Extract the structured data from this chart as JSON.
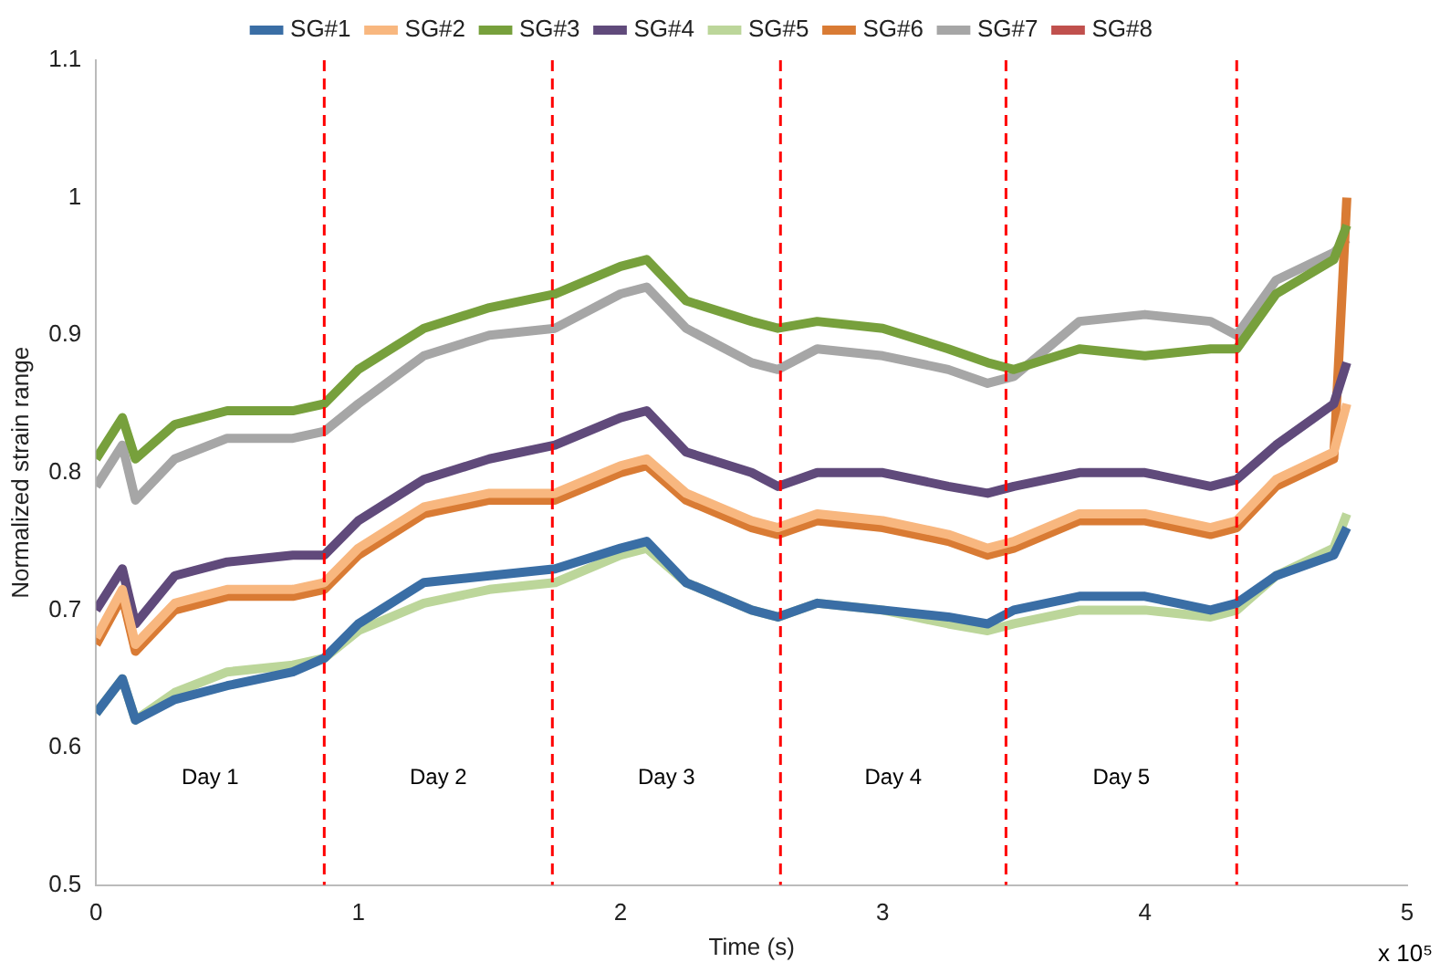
{
  "chart_data": {
    "type": "line",
    "xlabel": "Time (s)",
    "ylabel": "Normalized strain range",
    "x": [
      0,
      0.1,
      0.15,
      0.3,
      0.5,
      0.75,
      0.87,
      1.0,
      1.25,
      1.5,
      1.75,
      2.0,
      2.1,
      2.25,
      2.5,
      2.6,
      2.75,
      3.0,
      3.25,
      3.4,
      3.5,
      3.75,
      4.0,
      4.25,
      4.35,
      4.5,
      4.72,
      4.77
    ],
    "series": [
      {
        "name": "SG#1",
        "color": "#3a6ea5",
        "values": [
          0.625,
          0.65,
          0.62,
          0.635,
          0.645,
          0.655,
          0.665,
          0.69,
          0.72,
          0.725,
          0.73,
          0.745,
          0.75,
          0.72,
          0.7,
          0.695,
          0.705,
          0.7,
          0.695,
          0.69,
          0.7,
          0.71,
          0.71,
          0.7,
          0.705,
          0.725,
          0.74,
          0.76
        ]
      },
      {
        "name": "SG#2",
        "color": "#f8b77f",
        "values": [
          0.68,
          0.715,
          0.675,
          0.705,
          0.715,
          0.715,
          0.72,
          0.745,
          0.775,
          0.785,
          0.785,
          0.805,
          0.81,
          0.785,
          0.765,
          0.76,
          0.77,
          0.765,
          0.755,
          0.745,
          0.75,
          0.77,
          0.77,
          0.76,
          0.765,
          0.795,
          0.815,
          0.85
        ]
      },
      {
        "name": "SG#3",
        "color": "#77a03c",
        "values": [
          0.81,
          0.84,
          0.81,
          0.835,
          0.845,
          0.845,
          0.85,
          0.875,
          0.905,
          0.92,
          0.93,
          0.95,
          0.955,
          0.925,
          0.91,
          0.905,
          0.91,
          0.905,
          0.89,
          0.88,
          0.875,
          0.89,
          0.885,
          0.89,
          0.89,
          0.93,
          0.955,
          0.98
        ]
      },
      {
        "name": "SG#4",
        "color": "#604a7b",
        "values": [
          0.7,
          0.73,
          0.69,
          0.725,
          0.735,
          0.74,
          0.74,
          0.765,
          0.795,
          0.81,
          0.82,
          0.84,
          0.845,
          0.815,
          0.8,
          0.79,
          0.8,
          0.8,
          0.79,
          0.785,
          0.79,
          0.8,
          0.8,
          0.79,
          0.795,
          0.82,
          0.85,
          0.88
        ]
      },
      {
        "name": "SG#5",
        "color": "#bcd69a",
        "values": [
          0.625,
          0.65,
          0.62,
          0.64,
          0.655,
          0.66,
          0.665,
          0.685,
          0.705,
          0.715,
          0.72,
          0.74,
          0.745,
          0.72,
          0.7,
          0.695,
          0.705,
          0.7,
          0.69,
          0.685,
          0.69,
          0.7,
          0.7,
          0.695,
          0.7,
          0.725,
          0.745,
          0.77
        ]
      },
      {
        "name": "SG#6",
        "color": "#d97b34",
        "values": [
          0.675,
          0.71,
          0.67,
          0.7,
          0.71,
          0.71,
          0.715,
          0.74,
          0.77,
          0.78,
          0.78,
          0.8,
          0.805,
          0.78,
          0.76,
          0.755,
          0.765,
          0.76,
          0.75,
          0.74,
          0.745,
          0.765,
          0.765,
          0.755,
          0.76,
          0.79,
          0.81,
          1.0
        ]
      },
      {
        "name": "SG#7",
        "color": "#a6a6a6",
        "values": [
          0.79,
          0.82,
          0.78,
          0.81,
          0.825,
          0.825,
          0.83,
          0.85,
          0.885,
          0.9,
          0.905,
          0.93,
          0.935,
          0.905,
          0.88,
          0.875,
          0.89,
          0.885,
          0.875,
          0.865,
          0.87,
          0.91,
          0.915,
          0.91,
          0.9,
          0.94,
          0.96,
          0.97
        ]
      },
      {
        "name": "SG#8",
        "color": "#c0504d",
        "values": [
          null,
          null,
          null,
          null,
          null,
          null,
          null,
          null,
          null,
          null,
          null,
          null,
          null,
          null,
          null,
          null,
          null,
          null,
          null,
          null,
          null,
          null,
          null,
          null,
          null,
          null,
          null,
          null
        ]
      }
    ],
    "xlim": [
      0,
      5
    ],
    "xticks": [
      0,
      1,
      2,
      3,
      4,
      5
    ],
    "ylim": [
      0.5,
      1.1
    ],
    "yticks": [
      0.5,
      0.6,
      0.7,
      0.8,
      0.9,
      1,
      1.1
    ],
    "grid": false,
    "legend": "top",
    "ref_lines": [
      {
        "axis": "x",
        "value": 0.87,
        "color": "#ff0000",
        "line_style": "dashed"
      },
      {
        "axis": "x",
        "value": 1.74,
        "color": "#ff0000",
        "line_style": "dashed"
      },
      {
        "axis": "x",
        "value": 2.61,
        "color": "#ff0000",
        "line_style": "dashed"
      },
      {
        "axis": "x",
        "value": 3.47,
        "color": "#ff0000",
        "line_style": "dashed"
      },
      {
        "axis": "x",
        "value": 4.35,
        "color": "#ff0000",
        "line_style": "dashed"
      }
    ],
    "annotations": [
      "Day 1",
      "Day 2",
      "Day 3",
      "Day 4",
      "Day 5",
      "x 10⁵"
    ]
  }
}
